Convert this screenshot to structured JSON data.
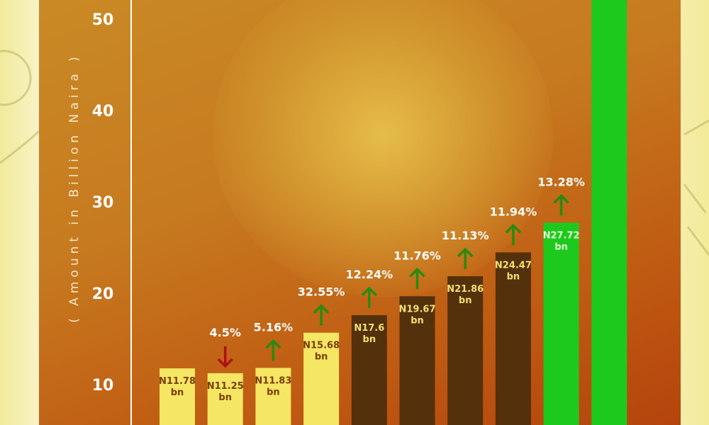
{
  "chart_data": {
    "type": "bar",
    "ylabel": "( Amount in Billion Naira )",
    "yticks": [
      10,
      20,
      30,
      40,
      50
    ],
    "ylim": [
      7.5,
      52
    ],
    "grid": false,
    "values": [
      11.78,
      11.25,
      11.83,
      15.68,
      17.6,
      19.67,
      21.86,
      24.47,
      27.72,
      null
    ],
    "bar_labels": [
      "N11.78\nbn",
      "N11.25\nbn",
      "N11.83\nbn",
      "N15.68\nbn",
      "N17.6\nbn",
      "N19.67\nbn",
      "N21.86\nbn",
      "N24.47\nbn",
      "N27.72\nbn",
      ""
    ],
    "change_labels": [
      "",
      "4.5%",
      "5.16%",
      "32.55%",
      "12.24%",
      "11.76%",
      "11.13%",
      "11.94%",
      "13.28%",
      ""
    ],
    "change_direction": [
      "",
      "down",
      "up",
      "up",
      "up",
      "up",
      "up",
      "up",
      "up",
      ""
    ],
    "bar_colors": [
      "#f5e663",
      "#f5e663",
      "#f5e663",
      "#f5e663",
      "#54300d",
      "#54300d",
      "#54300d",
      "#54300d",
      "#1ec91e",
      "#1ec91e"
    ],
    "label_colors": [
      "#7a3d0a",
      "#7a3d0a",
      "#7a3d0a",
      "#7a3d0a",
      "#f0e070",
      "#f0e070",
      "#f0e070",
      "#f0e070",
      "#e0f7d0",
      "#e0f7d0"
    ],
    "colors": {
      "up_arrow": "#2a8a10",
      "down_arrow": "#b01010",
      "axis": "#ffffff"
    }
  }
}
